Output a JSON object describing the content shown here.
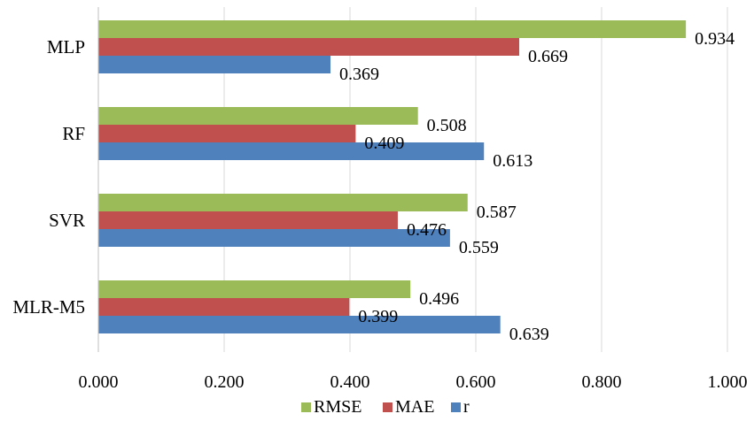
{
  "chart_data": {
    "type": "bar",
    "orientation": "horizontal",
    "categories": [
      "MLP",
      "RF",
      "SVR",
      "MLR-M5"
    ],
    "series": [
      {
        "name": "RMSE",
        "color": "#9BBB59",
        "values": [
          0.934,
          0.508,
          0.587,
          0.496
        ],
        "labels": [
          "0.934",
          "0.508",
          "0.587",
          "0.496"
        ]
      },
      {
        "name": "MAE",
        "color": "#C0504D",
        "values": [
          0.669,
          0.409,
          0.476,
          0.399
        ],
        "labels": [
          "0.669",
          "0.409",
          "0.476",
          "0.399"
        ]
      },
      {
        "name": "r",
        "color": "#4F81BD",
        "values": [
          0.369,
          0.613,
          0.559,
          0.639
        ],
        "labels": [
          "0.369",
          "0.613",
          "0.559",
          "0.639"
        ]
      }
    ],
    "xlim": [
      0,
      1.0
    ],
    "xticks": [
      0,
      0.2,
      0.4,
      0.6,
      0.8,
      1.0
    ],
    "xtick_labels": [
      "0.000",
      "0.200",
      "0.400",
      "0.600",
      "0.800",
      "1.000"
    ],
    "grid": "vertical",
    "legend_position": "bottom",
    "title": "",
    "xlabel": "",
    "ylabel": ""
  }
}
